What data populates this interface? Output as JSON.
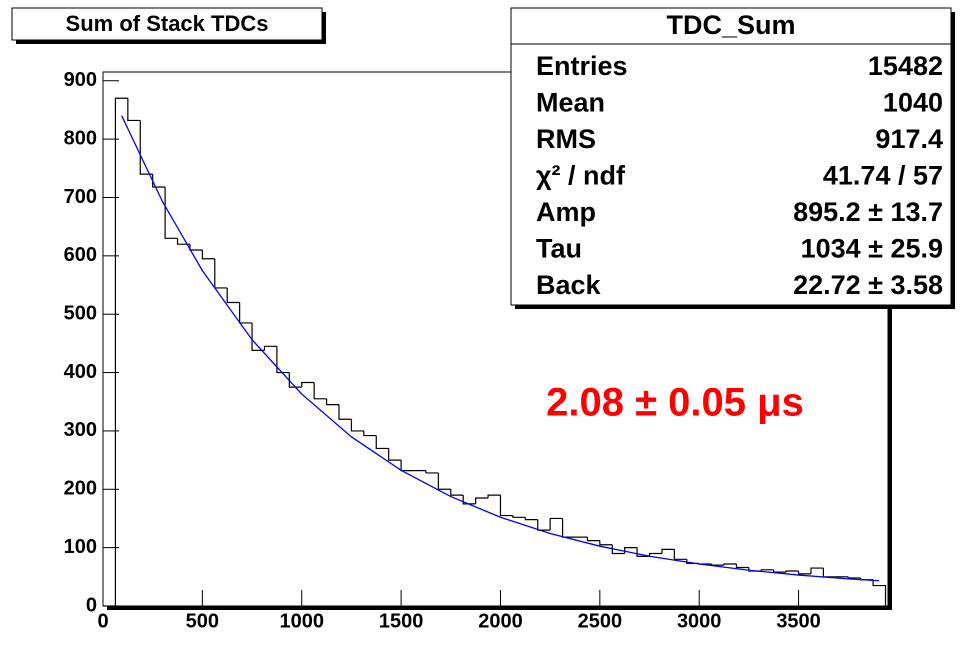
{
  "chart_data": {
    "type": "histogram",
    "title": "Sum of Stack TDCs",
    "bins": [
      0,
      62.5,
      125,
      187.5,
      250,
      312.5,
      375,
      437.5,
      500,
      562.5,
      625,
      687.5,
      750,
      812.5,
      875,
      937.5,
      1000,
      1062.5,
      1125,
      1187.5,
      1250,
      1312.5,
      1375,
      1437.5,
      1500,
      1562.5,
      1625,
      1687.5,
      1750,
      1812.5,
      1875,
      1937.5,
      2000,
      2062.5,
      2125,
      2187.5,
      2250,
      2312.5,
      2375,
      2437.5,
      2500,
      2562.5,
      2625,
      2687.5,
      2750,
      2812.5,
      2875,
      2937.5,
      3000,
      3062.5,
      3125,
      3187.5,
      3250,
      3312.5,
      3375,
      3437.5,
      3500,
      3562.5,
      3625,
      3687.5,
      3750,
      3812.5,
      3875,
      3937.5
    ],
    "values": [
      0,
      870,
      832,
      740,
      718,
      630,
      620,
      610,
      595,
      545,
      520,
      485,
      438,
      445,
      400,
      375,
      383,
      355,
      345,
      320,
      300,
      292,
      270,
      250,
      232,
      232,
      228,
      200,
      190,
      175,
      185,
      190,
      155,
      152,
      148,
      130,
      150,
      118,
      118,
      112,
      105,
      90,
      100,
      85,
      90,
      97,
      80,
      73,
      72,
      70,
      72,
      66,
      60,
      62,
      58,
      60,
      55,
      65,
      50,
      50,
      48,
      45,
      35
    ],
    "color": "#000000",
    "xlim": [
      0,
      3950
    ],
    "ylim": [
      0,
      915
    ],
    "xticks": [
      0,
      500,
      1000,
      1500,
      2000,
      2500,
      3000,
      3500
    ],
    "yticks": [
      0,
      100,
      200,
      300,
      400,
      500,
      600,
      700,
      800,
      900
    ],
    "fit": {
      "color": "#0000ff",
      "x": [
        94,
        300,
        500,
        750,
        1000,
        1250,
        1500,
        1750,
        2000,
        2250,
        2500,
        2750,
        3000,
        3250,
        3500,
        3750,
        3906
      ],
      "values": [
        840.1,
        692.5,
        574.7,
        456.2,
        363.1,
        289.9,
        232.5,
        187.5,
        152.1,
        124.3,
        102.5,
        85.3,
        71.9,
        61.3,
        53.0,
        46.5,
        43.2
      ]
    },
    "annotation": "2.08 ± 0.05 μs",
    "annotation_color": "#ff0000",
    "stats": {
      "title": "TDC_Sum",
      "rows": [
        {
          "label": "Entries",
          "value": "15482"
        },
        {
          "label": "Mean",
          "value": "1040"
        },
        {
          "label": "RMS",
          "value": "917.4"
        },
        {
          "label": "χ² / ndf",
          "value": "41.74 / 57"
        },
        {
          "label": "Amp",
          "value": "895.2 ± 13.7"
        },
        {
          "label": "Tau",
          "value": "1034 ± 25.9"
        },
        {
          "label": "Back",
          "value": "22.72 ± 3.58"
        }
      ]
    }
  }
}
